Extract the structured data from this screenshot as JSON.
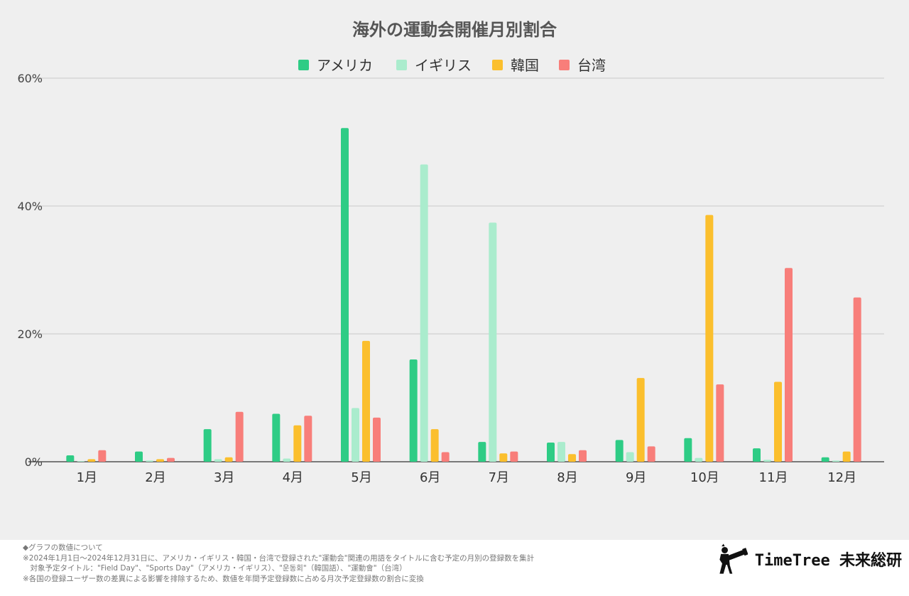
{
  "chart_data": {
    "type": "bar",
    "title": "海外の運動会開催月別割合",
    "categories": [
      "1月",
      "2月",
      "3月",
      "4月",
      "5月",
      "6月",
      "7月",
      "8月",
      "9月",
      "10月",
      "11月",
      "12月"
    ],
    "series": [
      {
        "name": "アメリカ",
        "color": "#2ecc85",
        "values": [
          1.0,
          1.6,
          5.1,
          7.5,
          52.2,
          16.0,
          3.1,
          3.0,
          3.4,
          3.7,
          2.1,
          0.7
        ]
      },
      {
        "name": "イギリス",
        "color": "#aaeccd",
        "values": [
          0.1,
          0.2,
          0.4,
          0.5,
          8.4,
          46.5,
          37.4,
          3.1,
          1.5,
          0.6,
          0.3,
          0.2
        ]
      },
      {
        "name": "韓国",
        "color": "#fbbf2d",
        "values": [
          0.4,
          0.4,
          0.7,
          5.7,
          18.9,
          5.1,
          1.3,
          1.2,
          13.1,
          38.6,
          12.5,
          1.6
        ]
      },
      {
        "name": "台湾",
        "color": "#f87e7a",
        "values": [
          1.8,
          0.6,
          7.8,
          7.2,
          6.9,
          1.5,
          1.6,
          1.8,
          2.4,
          12.1,
          30.3,
          25.7
        ]
      }
    ],
    "ylim": [
      0,
      60
    ],
    "yticks": [
      "0%",
      "20%",
      "40%",
      "60%"
    ],
    "ytick_values": [
      0,
      20,
      40,
      60
    ],
    "grid": true,
    "legend_position": "top-center"
  },
  "notes": [
    "◆グラフの数値について",
    "※2024年1月1日〜2024年12月31日に、アメリカ・イギリス・韓国・台湾で登録された\"運動会\"関連の用語をタイトルに含む予定の月別の登録数を集計",
    "　対象予定タイトル：\"Field Day\"、\"Sports Day\"（アメリカ・イギリス）、\"운동회\"（韓国語）、\"運動會\"（台湾）",
    "※各国の登録ユーザー数の差異による影響を排除するため、数値を年間予定登録数に占める月次予定登録数の割合に変換"
  ],
  "brand": {
    "name": "TimeTree 未来総研",
    "icon": "telescope-person-icon"
  }
}
